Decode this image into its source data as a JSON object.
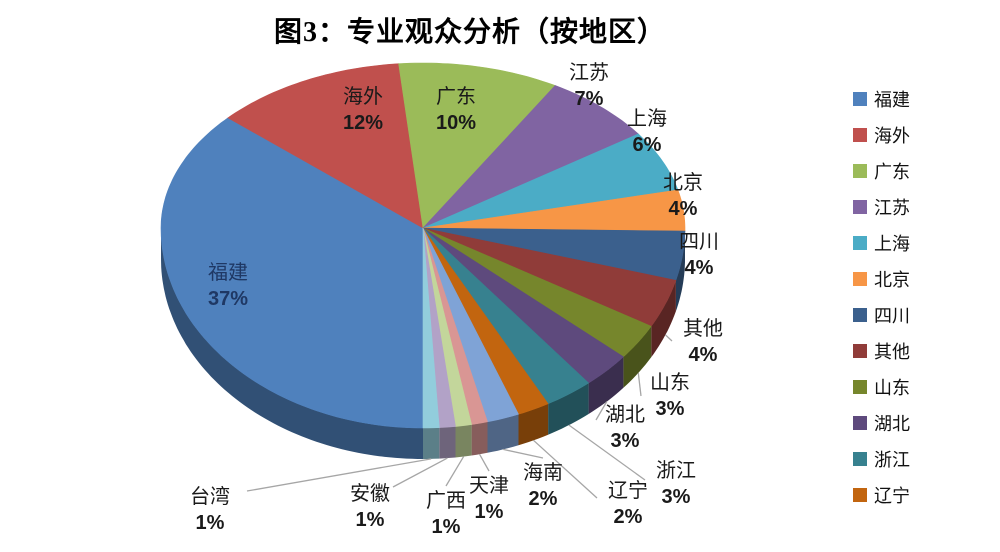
{
  "title": "图3：专业观众分析（按地区）",
  "chart_data": {
    "type": "pie",
    "style": "3d",
    "title": "图3：专业观众分析（按地区）",
    "unit": "%",
    "legend_position": "right",
    "direction": "clockwise",
    "categories": [
      "福建",
      "海外",
      "广东",
      "江苏",
      "上海",
      "北京",
      "四川",
      "其他",
      "山东",
      "湖北",
      "浙江",
      "辽宁",
      "海南",
      "天津",
      "广西",
      "安徽",
      "台湾"
    ],
    "values": [
      37,
      12,
      10,
      7,
      6,
      4,
      4,
      4,
      3,
      3,
      3,
      2,
      2,
      1,
      1,
      1,
      1
    ],
    "percent_labels": [
      "37%",
      "12%",
      "10%",
      "7%",
      "6%",
      "4%",
      "4%",
      "4%",
      "3%",
      "3%",
      "3%",
      "2%",
      "2%",
      "1%",
      "1%",
      "1%",
      "1%"
    ],
    "colors": [
      "#4F81BD",
      "#C0504D",
      "#9BBB59",
      "#8064A2",
      "#4BACC6",
      "#F79646",
      "#3B608D",
      "#903C39",
      "#76862C",
      "#5E4A7D",
      "#37818F",
      "#C2650F",
      "#7FA3D6",
      "#D99694",
      "#C3D69B",
      "#B2A2C7",
      "#92CDDC"
    ],
    "legend_entries": [
      "福建",
      "海外",
      "广东",
      "江苏",
      "上海",
      "北京",
      "四川",
      "其他",
      "山东",
      "湖北",
      "浙江",
      "辽宁"
    ]
  }
}
